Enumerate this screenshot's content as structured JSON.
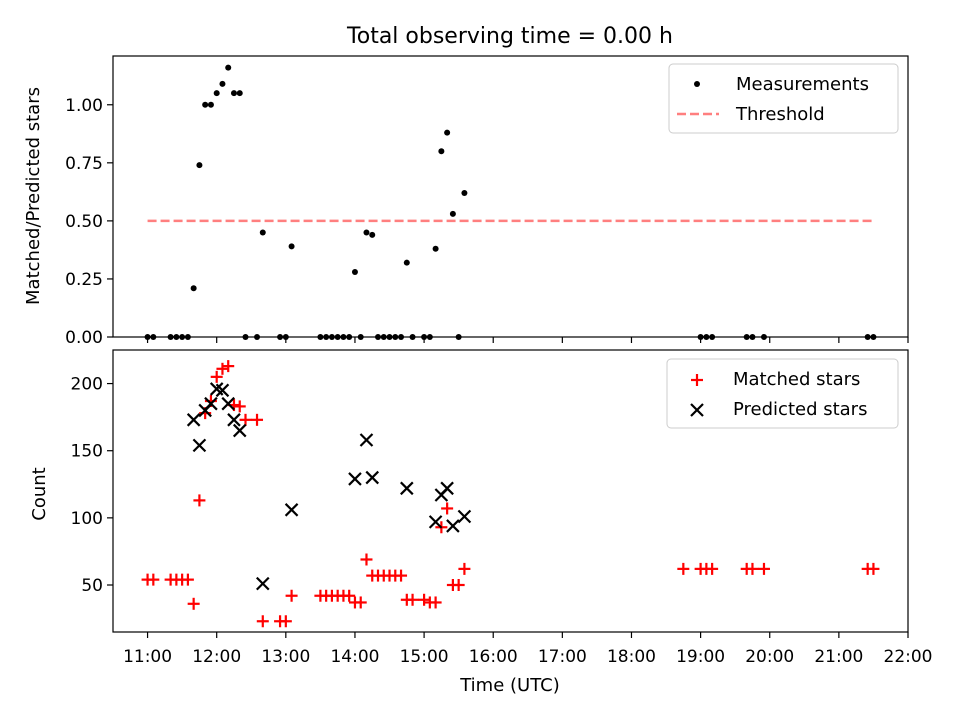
{
  "title": "Total observing time = 0.00 h",
  "chart_data": [
    {
      "type": "scatter",
      "panel": "top",
      "xlabel": "",
      "ylabel": "Matched/Predicted stars",
      "xlim": [
        "10:30",
        "22:00"
      ],
      "ylim": [
        0,
        1.21
      ],
      "y_ticks": [
        0.0,
        0.25,
        0.5,
        0.75,
        1.0
      ],
      "y_tick_labels": [
        "0.00",
        "0.25",
        "0.50",
        "0.75",
        "1.00"
      ],
      "grid": false,
      "legend": "top-right",
      "legend_entries": [
        "Measurements",
        "Threshold"
      ],
      "colors": {
        "measurements": "#000000",
        "threshold": "#ff7f7f"
      },
      "series": [
        {
          "name": "Measurements",
          "marker": "dot",
          "points": [
            [
              "11:00",
              0
            ],
            [
              "11:05",
              0
            ],
            [
              "11:20",
              0
            ],
            [
              "11:25",
              0
            ],
            [
              "11:30",
              0
            ],
            [
              "11:35",
              0
            ],
            [
              "11:40",
              0.21
            ],
            [
              "11:45",
              0.74
            ],
            [
              "11:50",
              1.0
            ],
            [
              "11:55",
              1.0
            ],
            [
              "12:00",
              1.05
            ],
            [
              "12:05",
              1.09
            ],
            [
              "12:10",
              1.16
            ],
            [
              "12:15",
              1.05
            ],
            [
              "12:20",
              1.05
            ],
            [
              "12:25",
              0
            ],
            [
              "12:35",
              0
            ],
            [
              "12:40",
              0.45
            ],
            [
              "12:55",
              0
            ],
            [
              "13:00",
              0
            ],
            [
              "13:05",
              0.39
            ],
            [
              "13:30",
              0
            ],
            [
              "13:35",
              0
            ],
            [
              "13:40",
              0
            ],
            [
              "13:45",
              0
            ],
            [
              "13:50",
              0
            ],
            [
              "13:55",
              0
            ],
            [
              "14:00",
              0.28
            ],
            [
              "14:05",
              0
            ],
            [
              "14:10",
              0.45
            ],
            [
              "14:15",
              0.44
            ],
            [
              "14:20",
              0
            ],
            [
              "14:25",
              0
            ],
            [
              "14:30",
              0
            ],
            [
              "14:35",
              0
            ],
            [
              "14:40",
              0
            ],
            [
              "14:45",
              0.32
            ],
            [
              "14:50",
              0
            ],
            [
              "15:00",
              0
            ],
            [
              "15:05",
              0
            ],
            [
              "15:10",
              0.38
            ],
            [
              "15:15",
              0.8
            ],
            [
              "15:20",
              0.88
            ],
            [
              "15:25",
              0.53
            ],
            [
              "15:30",
              0
            ],
            [
              "15:35",
              0.62
            ],
            [
              "19:00",
              0
            ],
            [
              "19:05",
              0
            ],
            [
              "19:10",
              0
            ],
            [
              "19:40",
              0
            ],
            [
              "19:45",
              0
            ],
            [
              "19:55",
              0
            ],
            [
              "21:25",
              0
            ],
            [
              "21:30",
              0
            ]
          ]
        },
        {
          "name": "Threshold",
          "line": "dashed",
          "points": [
            [
              "11:00",
              0.5
            ],
            [
              "21:30",
              0.5
            ]
          ]
        }
      ]
    },
    {
      "type": "scatter",
      "panel": "bottom",
      "xlabel": "Time (UTC)",
      "ylabel": "Count",
      "xlim": [
        "10:30",
        "22:00"
      ],
      "ylim": [
        15,
        225
      ],
      "y_ticks": [
        50,
        100,
        150,
        200
      ],
      "y_tick_labels": [
        "50",
        "100",
        "150",
        "200"
      ],
      "x_ticks": [
        "11:00",
        "12:00",
        "13:00",
        "14:00",
        "15:00",
        "16:00",
        "17:00",
        "18:00",
        "19:00",
        "20:00",
        "21:00",
        "22:00"
      ],
      "grid": false,
      "legend": "top-right",
      "legend_entries": [
        "Matched stars",
        "Predicted stars"
      ],
      "colors": {
        "matched": "#ff0000",
        "predicted": "#000000"
      },
      "series": [
        {
          "name": "Matched stars",
          "marker": "plus",
          "points": [
            [
              "11:00",
              54
            ],
            [
              "11:05",
              54
            ],
            [
              "11:20",
              54
            ],
            [
              "11:25",
              54
            ],
            [
              "11:30",
              54
            ],
            [
              "11:35",
              54
            ],
            [
              "11:40",
              36
            ],
            [
              "11:45",
              113
            ],
            [
              "11:50",
              178
            ],
            [
              "11:55",
              187
            ],
            [
              "12:00",
              205
            ],
            [
              "12:05",
              211
            ],
            [
              "12:10",
              213
            ],
            [
              "12:15",
              184
            ],
            [
              "12:20",
              183
            ],
            [
              "12:25",
              173
            ],
            [
              "12:35",
              173
            ],
            [
              "12:40",
              23
            ],
            [
              "12:55",
              23
            ],
            [
              "13:00",
              23
            ],
            [
              "13:05",
              42
            ],
            [
              "13:30",
              42
            ],
            [
              "13:35",
              42
            ],
            [
              "13:40",
              42
            ],
            [
              "13:45",
              42
            ],
            [
              "13:50",
              42
            ],
            [
              "13:55",
              42
            ],
            [
              "14:00",
              37
            ],
            [
              "14:05",
              37
            ],
            [
              "14:10",
              69
            ],
            [
              "14:15",
              57
            ],
            [
              "14:20",
              57
            ],
            [
              "14:25",
              57
            ],
            [
              "14:30",
              57
            ],
            [
              "14:35",
              57
            ],
            [
              "14:40",
              57
            ],
            [
              "14:45",
              39
            ],
            [
              "14:50",
              39
            ],
            [
              "15:00",
              39
            ],
            [
              "15:05",
              37
            ],
            [
              "15:10",
              37
            ],
            [
              "15:15",
              93
            ],
            [
              "15:20",
              107
            ],
            [
              "15:25",
              50
            ],
            [
              "15:30",
              50
            ],
            [
              "15:35",
              62
            ],
            [
              "18:45",
              62
            ],
            [
              "19:00",
              62
            ],
            [
              "19:05",
              62
            ],
            [
              "19:10",
              62
            ],
            [
              "19:40",
              62
            ],
            [
              "19:45",
              62
            ],
            [
              "19:55",
              62
            ],
            [
              "21:25",
              62
            ],
            [
              "21:30",
              62
            ]
          ]
        },
        {
          "name": "Predicted stars",
          "marker": "x",
          "points": [
            [
              "11:40",
              173
            ],
            [
              "11:45",
              154
            ],
            [
              "11:50",
              180
            ],
            [
              "11:55",
              185
            ],
            [
              "12:00",
              196
            ],
            [
              "12:05",
              195
            ],
            [
              "12:10",
              185
            ],
            [
              "12:15",
              173
            ],
            [
              "12:20",
              165
            ],
            [
              "12:40",
              51
            ],
            [
              "13:05",
              106
            ],
            [
              "14:00",
              129
            ],
            [
              "14:10",
              158
            ],
            [
              "14:15",
              130
            ],
            [
              "14:45",
              122
            ],
            [
              "15:10",
              97
            ],
            [
              "15:15",
              117
            ],
            [
              "15:20",
              122
            ],
            [
              "15:25",
              94
            ],
            [
              "15:35",
              101
            ]
          ]
        }
      ]
    }
  ]
}
